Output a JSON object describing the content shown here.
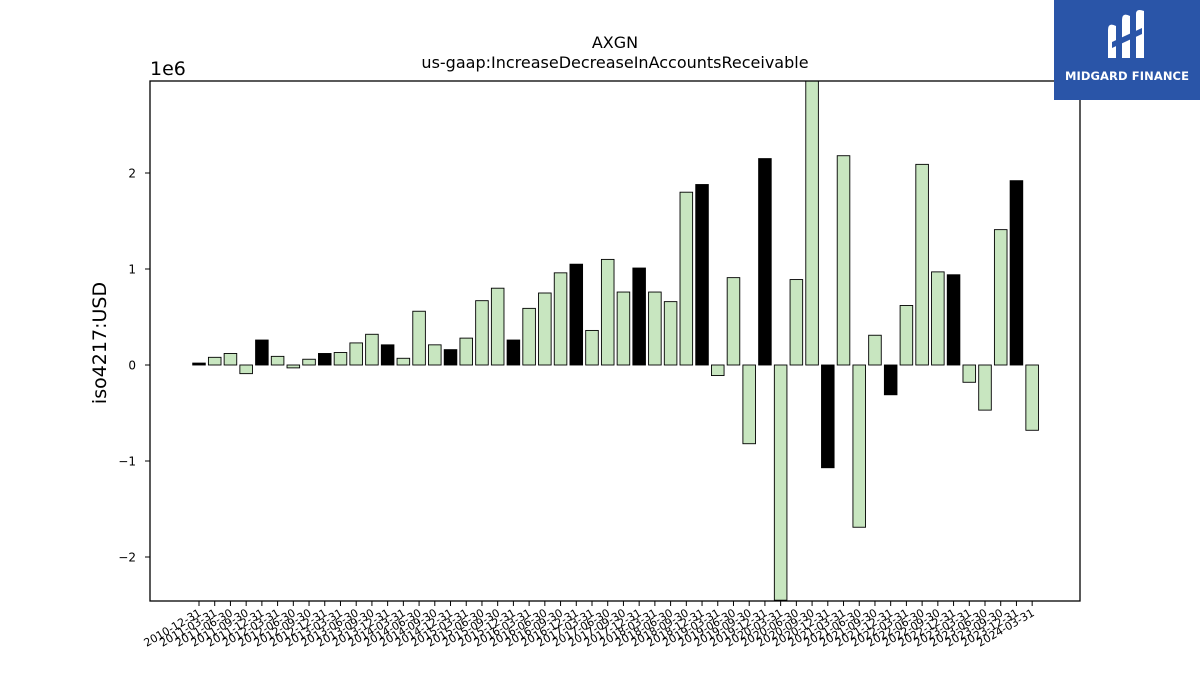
{
  "chart_data": {
    "type": "bar",
    "title": "AXGN",
    "subtitle": "us-gaap:IncreaseDecreaseInAccountsReceivable",
    "ylabel": "iso4217:USD",
    "xlabel": "",
    "y_offset_label": "1e6",
    "ylim": [
      -2.45,
      2.96
    ],
    "yticks": [
      -2,
      -1,
      0,
      1,
      2
    ],
    "ytick_labels": [
      "−2",
      "−1",
      "0",
      "1",
      "2"
    ],
    "grid": false,
    "colors": {
      "light": "#c8e6c0",
      "dark": "#000000",
      "edge": "#000000"
    },
    "categories": [
      "2010-12-31",
      "2011-03-31",
      "2011-06-30",
      "2011-09-30",
      "2011-12-31",
      "2012-03-31",
      "2012-06-30",
      "2012-09-30",
      "2012-12-31",
      "2013-03-31",
      "2013-06-30",
      "2013-09-30",
      "2013-12-31",
      "2014-03-31",
      "2014-06-30",
      "2014-09-30",
      "2014-12-31",
      "2015-03-31",
      "2015-06-30",
      "2015-09-30",
      "2015-12-31",
      "2016-03-31",
      "2016-06-30",
      "2016-09-30",
      "2016-12-31",
      "2017-03-31",
      "2017-06-30",
      "2017-09-30",
      "2017-12-31",
      "2018-03-31",
      "2018-06-30",
      "2018-09-30",
      "2018-12-31",
      "2019-03-31",
      "2019-06-30",
      "2019-09-30",
      "2019-12-31",
      "2020-03-31",
      "2020-06-30",
      "2020-09-30",
      "2020-12-31",
      "2021-03-31",
      "2021-06-30",
      "2021-09-30",
      "2021-12-31",
      "2022-03-31",
      "2022-06-30",
      "2022-09-30",
      "2022-12-31",
      "2023-03-31",
      "2023-06-30",
      "2023-09-30",
      "2023-12-31",
      "2024-03-31"
    ],
    "values": [
      0.02,
      0.08,
      0.12,
      -0.09,
      0.26,
      0.09,
      -0.03,
      0.06,
      0.12,
      0.13,
      0.23,
      0.32,
      0.21,
      0.07,
      0.56,
      0.21,
      0.16,
      0.28,
      0.67,
      0.8,
      0.26,
      0.59,
      0.75,
      0.96,
      1.05,
      0.36,
      1.1,
      0.76,
      1.01,
      0.76,
      0.66,
      1.8,
      1.88,
      -0.11,
      0.91,
      -0.82,
      2.15,
      -2.45,
      0.89,
      2.96,
      -1.07,
      2.18,
      -1.69,
      0.31,
      -0.31,
      0.62,
      2.09,
      0.97,
      0.94,
      -0.18,
      -0.47,
      1.41,
      1.92,
      -0.68
    ],
    "dark_categories": [
      "2010-12-31",
      "2011-12-31",
      "2012-12-31",
      "2013-12-31",
      "2014-12-31",
      "2015-12-31",
      "2016-12-31",
      "2017-12-31",
      "2018-12-31",
      "2019-12-31",
      "2020-12-31",
      "2021-12-31",
      "2022-12-31",
      "2023-12-31"
    ]
  },
  "logo": {
    "text": "MIDGARD FINANCE"
  }
}
